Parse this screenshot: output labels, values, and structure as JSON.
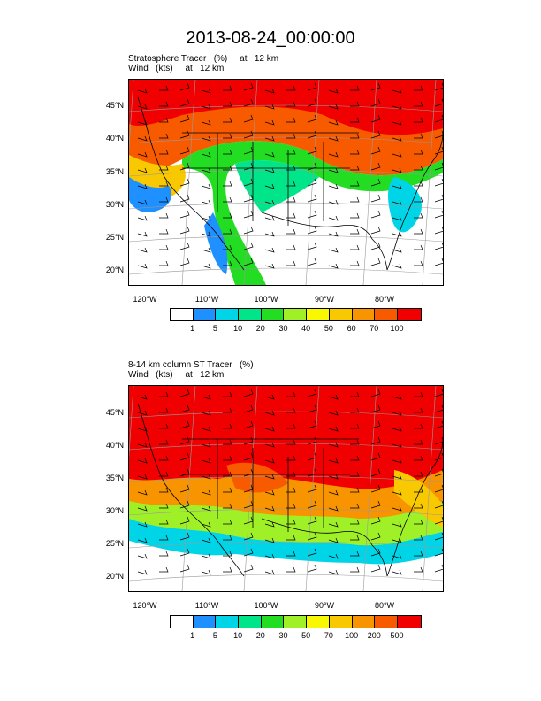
{
  "title": "2013-08-24_00:00:00",
  "panels": [
    {
      "subtitle_line1": "Stratosphere Tracer   (%)     at   12 km",
      "subtitle_line2": "Wind   (kts)     at   12 km",
      "colorbar_labels": [
        "1",
        "5",
        "10",
        "20",
        "30",
        "40",
        "50",
        "60",
        "70",
        "100"
      ],
      "colors": [
        "#ffffff",
        "#1e90ff",
        "#00d5e8",
        "#00e58a",
        "#22dd22",
        "#a0f028",
        "#f8f800",
        "#f8c800",
        "#f89400",
        "#f85a00",
        "#f00000"
      ]
    },
    {
      "subtitle_line1": "8-14 km column ST Tracer   (%)",
      "subtitle_line2": "Wind   (kts)     at   12 km",
      "colorbar_labels": [
        "1",
        "5",
        "10",
        "20",
        "30",
        "50",
        "70",
        "100",
        "200",
        "500"
      ],
      "colors": [
        "#ffffff",
        "#1e90ff",
        "#00d5e8",
        "#00e58a",
        "#22dd22",
        "#a0f028",
        "#f8f800",
        "#f8c800",
        "#f89400",
        "#f85a00",
        "#f00000"
      ]
    }
  ],
  "lat_labels": [
    "45°N",
    "40°N",
    "35°N",
    "30°N",
    "25°N",
    "20°N"
  ],
  "lon_labels": [
    "120°W",
    "110°W",
    "100°W",
    "90°W",
    "80°W"
  ]
}
